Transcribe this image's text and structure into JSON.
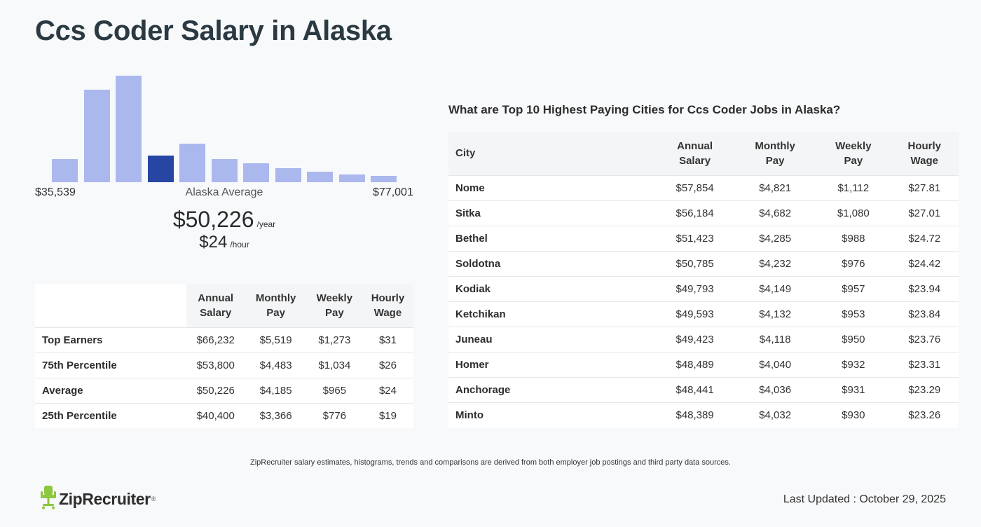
{
  "title": "Ccs Coder Salary in Alaska",
  "histogram": {
    "min_label": "$35,539",
    "max_label": "$77,001",
    "center_label": "Alaska Average",
    "highlight_index": 3,
    "bar_heights_rel": [
      0.22,
      0.87,
      1.0,
      0.25,
      0.36,
      0.22,
      0.18,
      0.13,
      0.1,
      0.07,
      0.06
    ],
    "colors": {
      "bar": "#aab8ee",
      "highlight": "#2745a2"
    }
  },
  "average": {
    "year_value": "$50,226",
    "year_unit": "/year",
    "hour_value": "$24",
    "hour_unit": "/hour"
  },
  "percentile_table": {
    "headers": [
      [
        "Annual",
        "Salary"
      ],
      [
        "Monthly",
        "Pay"
      ],
      [
        "Weekly",
        "Pay"
      ],
      [
        "Hourly",
        "Wage"
      ]
    ],
    "rows": [
      {
        "label": "Top Earners",
        "values": [
          "$66,232",
          "$5,519",
          "$1,273",
          "$31"
        ]
      },
      {
        "label": "75th Percentile",
        "values": [
          "$53,800",
          "$4,483",
          "$1,034",
          "$26"
        ]
      },
      {
        "label": "Average",
        "values": [
          "$50,226",
          "$4,185",
          "$965",
          "$24"
        ]
      },
      {
        "label": "25th Percentile",
        "values": [
          "$40,400",
          "$3,366",
          "$776",
          "$19"
        ]
      }
    ]
  },
  "cities": {
    "title": "What are Top 10 Highest Paying Cities for Ccs Coder Jobs in Alaska?",
    "city_header": "City",
    "headers": [
      [
        "Annual",
        "Salary"
      ],
      [
        "Monthly",
        "Pay"
      ],
      [
        "Weekly",
        "Pay"
      ],
      [
        "Hourly",
        "Wage"
      ]
    ],
    "rows": [
      {
        "city": "Nome",
        "values": [
          "$57,854",
          "$4,821",
          "$1,112",
          "$27.81"
        ]
      },
      {
        "city": "Sitka",
        "values": [
          "$56,184",
          "$4,682",
          "$1,080",
          "$27.01"
        ]
      },
      {
        "city": "Bethel",
        "values": [
          "$51,423",
          "$4,285",
          "$988",
          "$24.72"
        ]
      },
      {
        "city": "Soldotna",
        "values": [
          "$50,785",
          "$4,232",
          "$976",
          "$24.42"
        ]
      },
      {
        "city": "Kodiak",
        "values": [
          "$49,793",
          "$4,149",
          "$957",
          "$23.94"
        ]
      },
      {
        "city": "Ketchikan",
        "values": [
          "$49,593",
          "$4,132",
          "$953",
          "$23.84"
        ]
      },
      {
        "city": "Juneau",
        "values": [
          "$49,423",
          "$4,118",
          "$950",
          "$23.76"
        ]
      },
      {
        "city": "Homer",
        "values": [
          "$48,489",
          "$4,040",
          "$932",
          "$23.31"
        ]
      },
      {
        "city": "Anchorage",
        "values": [
          "$48,441",
          "$4,036",
          "$931",
          "$23.29"
        ]
      },
      {
        "city": "Minto",
        "values": [
          "$48,389",
          "$4,032",
          "$930",
          "$23.26"
        ]
      }
    ]
  },
  "footnote": "ZipRecruiter salary estimates, histograms, trends and comparisons are derived from both employer job postings and third party data sources.",
  "logo": {
    "text": "ZipRecruiter",
    "reg": "®",
    "icon": "chair-mascot-icon",
    "color": "#8dc63f"
  },
  "last_updated": "Last Updated : October 29, 2025"
}
